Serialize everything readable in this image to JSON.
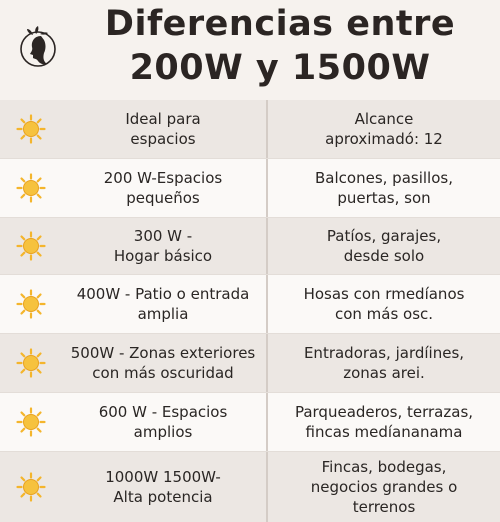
{
  "title": {
    "line1": "Diferencias entre",
    "line2": "200W y 1500W"
  },
  "logo_icon": "woman-profile-leaf-logo",
  "row_icon": "sun-icon",
  "colors": {
    "background": "#f6f2ee",
    "row_shade": "#ece7e3",
    "row_light": "#fbf9f7",
    "sun": "#f4b52c"
  },
  "rows": [
    {
      "left": "Ideal para\nespacios",
      "right": "Alcance\naproximadó: 12"
    },
    {
      "left": "200 W-Espacios\npequeños",
      "right": "Balcones, pasillos,\npuertas, son"
    },
    {
      "left": "300 W -\nHogar básico",
      "right": "Patíos, garajes,\ndesde solo"
    },
    {
      "left": "400W - Patio o entrada\namplia",
      "right": "Hosas con rmedíanos\ncon más osc."
    },
    {
      "left": "500W - Zonas exteriores\ncon más oscuridad",
      "right": "Entradoras, jardíines,\nzonas arei."
    },
    {
      "left": "600 W - Espacios\namplios",
      "right": "Parqueaderos, terrazas,\nfincas medíananama"
    },
    {
      "left": "1000W 1500W-\nAlta potencia",
      "right": "Fincas, bodegas,\nnegocios grandes o\nterrenos"
    }
  ]
}
